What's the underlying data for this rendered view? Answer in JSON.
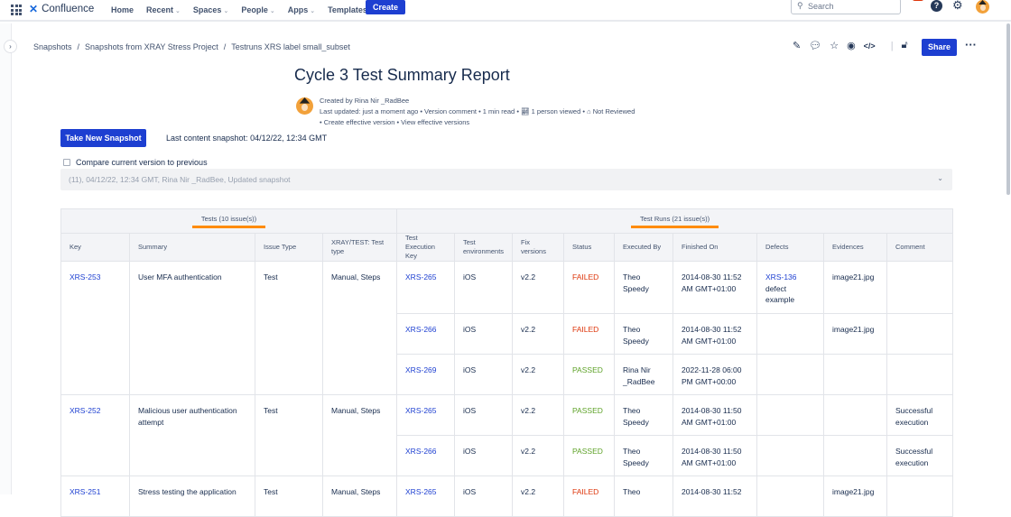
{
  "topbar": {
    "app_name": "Confluence",
    "nav": [
      "Home",
      "Recent",
      "Spaces",
      "People",
      "Apps",
      "Templates"
    ],
    "nav_dropdowns": [
      false,
      true,
      true,
      true,
      true,
      false
    ],
    "create_label": "Create",
    "search_placeholder": "Search",
    "notification_count": "9+",
    "help_label": "?"
  },
  "breadcrumb": [
    "Snapshots",
    "Snapshots from XRAY Stress Project",
    "Testruns XRS label small_subset"
  ],
  "page_actions": {
    "share_label": "Share",
    "icons": [
      "pencil-icon",
      "comment-icon",
      "star-icon",
      "watch-icon",
      "code-icon",
      "unlock-icon",
      "more-icon"
    ]
  },
  "page": {
    "title": "Cycle 3 Test Summary Report",
    "created_by": "Created by Rina Nir _RadBee",
    "last_updated": "Last updated: just a moment ago",
    "version_comment": "Version comment",
    "read_time": "1 min read",
    "views": "1 person viewed",
    "review_status": "Not Reviewed",
    "create_effective": "Create effective version",
    "view_effective": "View effective versions"
  },
  "snapshot": {
    "button_label": "Take New Snapshot",
    "last_snapshot": "Last content snapshot: 04/12/22, 12:34 GMT",
    "compare_label": "Compare current version to previous",
    "compare_checked": false,
    "version_select": "(11), 04/12/22, 12:34 GMT, Rina Nir _RadBee, Updated snapshot"
  },
  "colors": {
    "accent": "#1d3fd1",
    "failed": "#de350b",
    "passed": "#5ea228",
    "highlight": "#ff8b00"
  },
  "table": {
    "group_tests": "Tests (10 issue(s))",
    "group_runs": "Test Runs (21 issue(s))",
    "headers": [
      "Key",
      "Summary",
      "Issue Type",
      "XRAY/TEST: Test type",
      "Test Execution Key",
      "Test environments",
      "Fix versions",
      "Status",
      "Executed By",
      "Finished On",
      "Defects",
      "Evidences",
      "Comment"
    ],
    "tests": [
      {
        "key": "XRS-253",
        "summary": "User MFA authentication",
        "type": "Test",
        "test_type": "Manual, Steps",
        "runs": [
          {
            "exec": "XRS-265",
            "env": "iOS",
            "fix": "v2.2",
            "status": "FAILED",
            "by": "Theo Speedy",
            "finished": "2014-08-30 11:52 AM GMT+01:00",
            "defect_key": "XRS-136",
            "defect_text": "defect example",
            "evidence": "image21.jpg",
            "comment": ""
          },
          {
            "exec": "XRS-266",
            "env": "iOS",
            "fix": "v2.2",
            "status": "FAILED",
            "by": "Theo Speedy",
            "finished": "2014-08-30 11:52 AM GMT+01:00",
            "defect_key": "",
            "defect_text": "",
            "evidence": "image21.jpg",
            "comment": ""
          },
          {
            "exec": "XRS-269",
            "env": "iOS",
            "fix": "v2.2",
            "status": "PASSED",
            "by": "Rina Nir _RadBee",
            "finished": "2022-11-28 06:00 PM GMT+00:00",
            "defect_key": "",
            "defect_text": "",
            "evidence": "",
            "comment": ""
          }
        ]
      },
      {
        "key": "XRS-252",
        "summary": "Malicious user authentication attempt",
        "type": "Test",
        "test_type": "Manual, Steps",
        "runs": [
          {
            "exec": "XRS-265",
            "env": "iOS",
            "fix": "v2.2",
            "status": "PASSED",
            "by": "Theo Speedy",
            "finished": "2014-08-30 11:50 AM GMT+01:00",
            "defect_key": "",
            "defect_text": "",
            "evidence": "",
            "comment": "Successful execution"
          },
          {
            "exec": "XRS-266",
            "env": "iOS",
            "fix": "v2.2",
            "status": "PASSED",
            "by": "Theo Speedy",
            "finished": "2014-08-30 11:50 AM GMT+01:00",
            "defect_key": "",
            "defect_text": "",
            "evidence": "",
            "comment": "Successful execution"
          }
        ]
      },
      {
        "key": "XRS-251",
        "summary": "Stress testing the application",
        "type": "Test",
        "test_type": "Manual, Steps",
        "runs": [
          {
            "exec": "XRS-265",
            "env": "iOS",
            "fix": "v2.2",
            "status": "FAILED",
            "by": "Theo",
            "finished": "2014-08-30 11:52",
            "defect_key": "",
            "defect_text": "",
            "evidence": "image21.jpg",
            "comment": ""
          }
        ]
      }
    ]
  }
}
